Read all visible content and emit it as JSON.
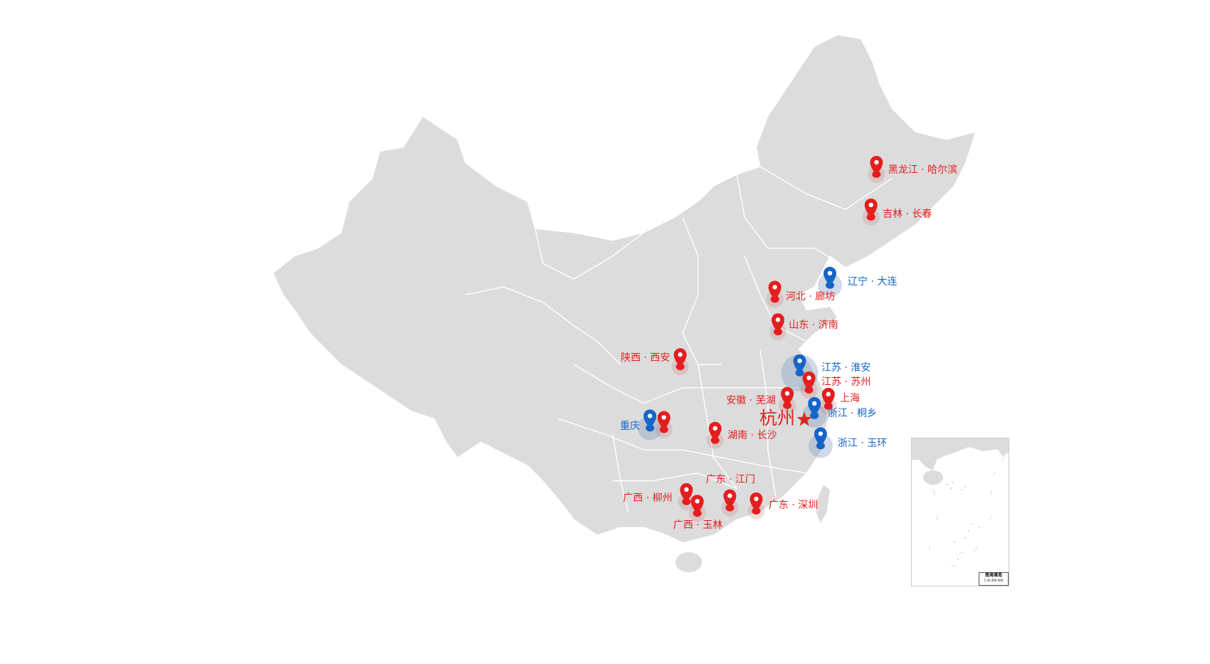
{
  "map": {
    "region": "China",
    "land_color": "#dcdcdc",
    "border_color": "#ffffff",
    "colors": {
      "red_marker": "#e41e1e",
      "blue_marker": "#1565c8",
      "star": "#d9261c"
    },
    "center_city": {
      "label": "杭州",
      "icon": "star-icon"
    },
    "markers": [
      {
        "label": "黑龙江 · 哈尔滨",
        "type": "red"
      },
      {
        "label": "吉林 · 长春",
        "type": "red"
      },
      {
        "label": "辽宁 · 大连",
        "type": "blue"
      },
      {
        "label": "河北 · 廊坊",
        "type": "red"
      },
      {
        "label": "山东 · 济南",
        "type": "red"
      },
      {
        "label": "陕西 · 西安",
        "type": "red"
      },
      {
        "label": "江苏 · 淮安",
        "type": "blue"
      },
      {
        "label": "江苏 · 苏州",
        "type": "red"
      },
      {
        "label": "上海",
        "type": "red"
      },
      {
        "label": "安徽 · 芜湖",
        "type": "red"
      },
      {
        "label": "浙江 · 桐乡",
        "type": "blue"
      },
      {
        "label": "浙江 · 玉环",
        "type": "blue"
      },
      {
        "label": "重庆",
        "type": "blue"
      },
      {
        "label": "",
        "type": "red"
      },
      {
        "label": "湖南 · 长沙",
        "type": "red"
      },
      {
        "label": "广东 · 江门",
        "type": "red"
      },
      {
        "label": "广西 · 柳州",
        "type": "red"
      },
      {
        "label": "广西 · 玉林",
        "type": "red"
      },
      {
        "label": "广东 · 深圳",
        "type": "red"
      }
    ],
    "inset": {
      "title": "南海诸岛",
      "scale": "1:32 000 000"
    }
  }
}
